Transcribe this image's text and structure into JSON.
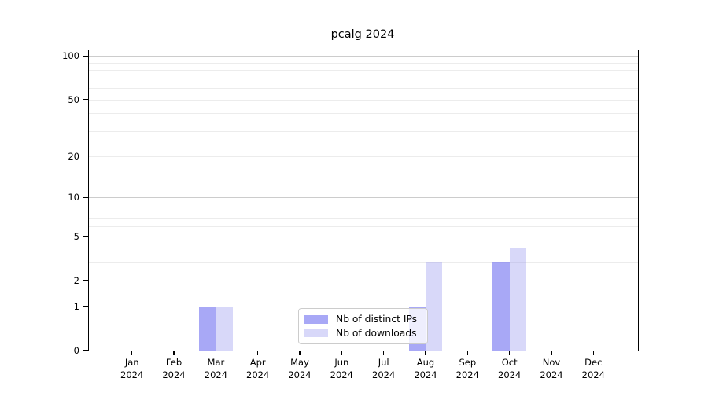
{
  "chart_data": {
    "type": "bar",
    "title": "pcalg 2024",
    "months": [
      "Jan",
      "Feb",
      "Mar",
      "Apr",
      "May",
      "Jun",
      "Jul",
      "Aug",
      "Sep",
      "Oct",
      "Nov",
      "Dec"
    ],
    "year": "2024",
    "categories": [
      "Jan 2024",
      "Feb 2024",
      "Mar 2024",
      "Apr 2024",
      "May 2024",
      "Jun 2024",
      "Jul 2024",
      "Aug 2024",
      "Sep 2024",
      "Oct 2024",
      "Nov 2024",
      "Dec 2024"
    ],
    "series": [
      {
        "name": "Nb of distinct IPs",
        "values": [
          0,
          0,
          1,
          0,
          0,
          0,
          0,
          1,
          0,
          3,
          0,
          0
        ],
        "color": "#a9a9f5",
        "fill": "rgba(115,115,240,0.62)"
      },
      {
        "name": "Nb of downloads",
        "values": [
          0,
          0,
          1,
          0,
          0,
          0,
          0,
          3,
          0,
          4,
          0,
          0
        ],
        "color": "#d8d8f8",
        "fill": "rgba(155,155,240,0.39)"
      }
    ],
    "yticks": [
      0,
      1,
      2,
      5,
      10,
      20,
      50,
      100
    ],
    "ylim": [
      0,
      110
    ],
    "yscale": "log10(1+y)",
    "xlabel": "",
    "ylabel": "",
    "grid": true,
    "legend_position": "lower center",
    "colors": {
      "grid_major": "#cccccc",
      "grid_minor": "#ececec",
      "axis": "#000000",
      "text": "#000000",
      "background": "#ffffff"
    }
  }
}
